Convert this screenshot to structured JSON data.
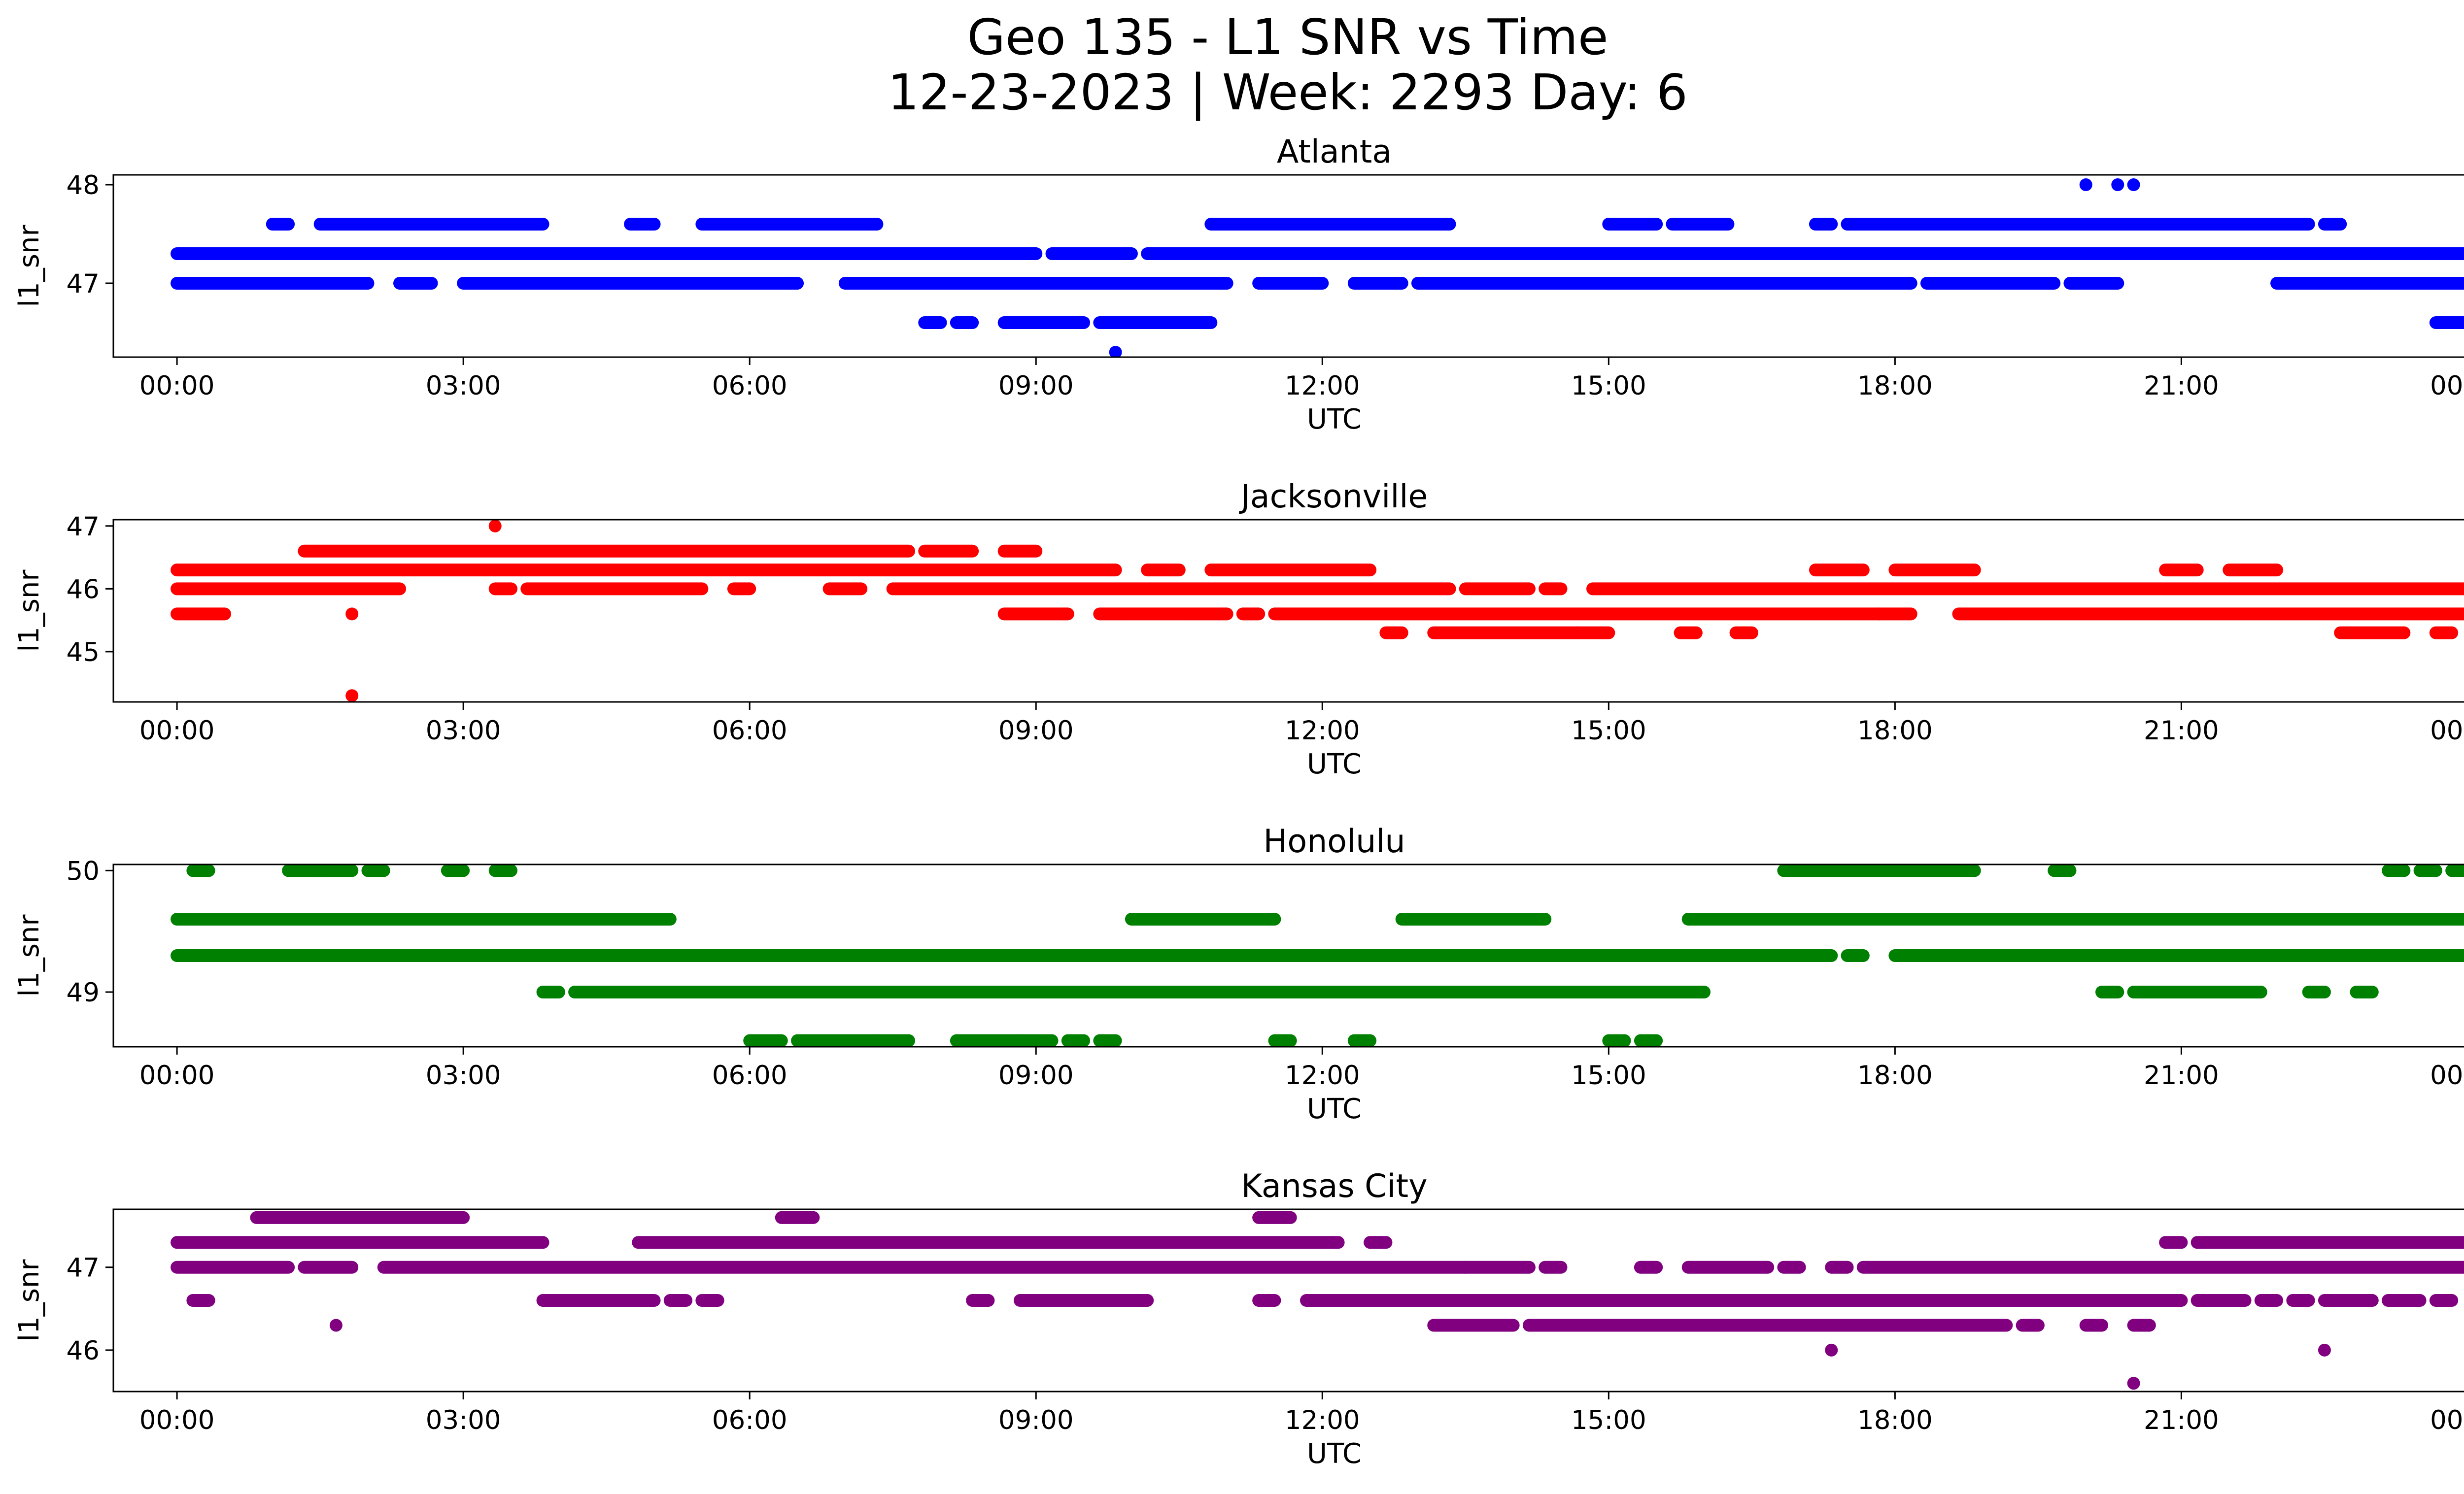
{
  "title_line1": "Geo 135 - L1 SNR vs Time",
  "title_line2": "12-23-2023 | Week: 2293 Day: 6",
  "chart_data": [
    {
      "type": "scatter",
      "title": "Atlanta",
      "xlabel": "UTC",
      "ylabel": "l1_snr",
      "color": "#0000ff",
      "xlim": [
        "-00:40",
        "24:55"
      ],
      "ylim": [
        46.25,
        48.1
      ],
      "xticks": [
        "00:00",
        "03:00",
        "06:00",
        "09:00",
        "12:00",
        "15:00",
        "18:00",
        "21:00",
        "00:00"
      ],
      "yticks": [
        47,
        48
      ],
      "bands": [
        {
          "y": 47.0,
          "ranges": [
            [
              "00:00",
              "02:00"
            ],
            [
              "02:20",
              "02:40"
            ],
            [
              "03:00",
              "03:40"
            ],
            [
              "03:40",
              "06:30"
            ],
            [
              "07:00",
              "11:00"
            ],
            [
              "11:20",
              "12:00"
            ],
            [
              "12:20",
              "12:50"
            ],
            [
              "13:00",
              "18:10"
            ],
            [
              "18:20",
              "19:40"
            ],
            [
              "19:50",
              "20:20"
            ],
            [
              "22:00",
              "24:00"
            ]
          ]
        },
        {
          "y": 47.3,
          "ranges": [
            [
              "00:00",
              "09:00"
            ],
            [
              "09:10",
              "10:00"
            ],
            [
              "10:10",
              "24:00"
            ]
          ]
        },
        {
          "y": 47.6,
          "ranges": [
            [
              "01:00",
              "01:10"
            ],
            [
              "01:30",
              "03:00"
            ],
            [
              "03:00",
              "03:50"
            ],
            [
              "04:45",
              "05:00"
            ],
            [
              "05:30",
              "06:20"
            ],
            [
              "06:10",
              "07:20"
            ],
            [
              "10:50",
              "13:20"
            ],
            [
              "15:00",
              "15:30"
            ],
            [
              "15:40",
              "16:15"
            ],
            [
              "17:10",
              "17:20"
            ],
            [
              "17:30",
              "19:50"
            ],
            [
              "19:50",
              "22:20"
            ],
            [
              "22:30",
              "22:40"
            ]
          ]
        },
        {
          "y": 46.6,
          "ranges": [
            [
              "07:50",
              "08:00"
            ],
            [
              "08:10",
              "08:20"
            ],
            [
              "08:40",
              "09:30"
            ],
            [
              "09:40",
              "10:50"
            ],
            [
              "23:40",
              "24:00"
            ]
          ]
        }
      ],
      "points": [
        [
          "20:00",
          48.0
        ],
        [
          "20:20",
          48.0
        ],
        [
          "20:30",
          48.0
        ],
        [
          "09:50",
          46.3
        ]
      ]
    },
    {
      "type": "scatter",
      "title": "Jacksonville",
      "xlabel": "UTC",
      "ylabel": "l1_snr",
      "color": "#ff0000",
      "xlim": [
        "-00:40",
        "24:55"
      ],
      "ylim": [
        44.2,
        47.1
      ],
      "xticks": [
        "00:00",
        "03:00",
        "06:00",
        "09:00",
        "12:00",
        "15:00",
        "18:00",
        "21:00",
        "00:00"
      ],
      "yticks": [
        45,
        46,
        47
      ],
      "bands": [
        {
          "y": 46.3,
          "ranges": [
            [
              "00:00",
              "09:50"
            ],
            [
              "10:10",
              "10:30"
            ],
            [
              "10:50",
              "12:30"
            ],
            [
              "17:10",
              "17:40"
            ],
            [
              "18:00",
              "18:50"
            ],
            [
              "20:50",
              "21:10"
            ],
            [
              "21:30",
              "22:00"
            ]
          ]
        },
        {
          "y": 46.6,
          "ranges": [
            [
              "01:20",
              "07:40"
            ],
            [
              "07:50",
              "08:20"
            ],
            [
              "08:40",
              "09:00"
            ]
          ]
        },
        {
          "y": 46.0,
          "ranges": [
            [
              "00:00",
              "02:20"
            ],
            [
              "03:20",
              "03:30"
            ],
            [
              "03:40",
              "05:30"
            ],
            [
              "05:50",
              "06:00"
            ],
            [
              "06:50",
              "07:10"
            ],
            [
              "07:30",
              "13:20"
            ],
            [
              "13:30",
              "14:10"
            ],
            [
              "14:20",
              "14:30"
            ],
            [
              "14:50",
              "24:00"
            ]
          ]
        },
        {
          "y": 45.6,
          "ranges": [
            [
              "00:00",
              "00:30"
            ],
            [
              "08:40",
              "09:20"
            ],
            [
              "09:40",
              "11:00"
            ],
            [
              "11:10",
              "11:20"
            ],
            [
              "11:30",
              "17:50"
            ],
            [
              "17:50",
              "18:10"
            ],
            [
              "18:40",
              "24:00"
            ]
          ]
        },
        {
          "y": 45.3,
          "ranges": [
            [
              "12:40",
              "12:50"
            ],
            [
              "13:10",
              "14:40"
            ],
            [
              "14:40",
              "15:00"
            ],
            [
              "15:45",
              "15:55"
            ],
            [
              "16:20",
              "16:30"
            ],
            [
              "22:40",
              "23:20"
            ],
            [
              "23:40",
              "23:50"
            ]
          ]
        }
      ],
      "points": [
        [
          "03:20",
          47.0
        ],
        [
          "01:50",
          45.6
        ],
        [
          "01:50",
          44.3
        ]
      ]
    },
    {
      "type": "scatter",
      "title": "Honolulu",
      "xlabel": "UTC",
      "ylabel": "l1_snr",
      "color": "#008000",
      "xlim": [
        "-00:40",
        "24:55"
      ],
      "ylim": [
        48.55,
        50.05
      ],
      "xticks": [
        "00:00",
        "03:00",
        "06:00",
        "09:00",
        "12:00",
        "15:00",
        "18:00",
        "21:00",
        "00:00"
      ],
      "yticks": [
        49,
        50
      ],
      "bands": [
        {
          "y": 49.3,
          "ranges": [
            [
              "00:00",
              "17:20"
            ],
            [
              "17:30",
              "17:40"
            ],
            [
              "18:00",
              "24:00"
            ]
          ]
        },
        {
          "y": 49.6,
          "ranges": [
            [
              "00:00",
              "05:10"
            ],
            [
              "10:00",
              "11:30"
            ],
            [
              "12:50",
              "13:30"
            ],
            [
              "13:30",
              "14:20"
            ],
            [
              "15:50",
              "24:00"
            ]
          ]
        },
        {
          "y": 49.0,
          "ranges": [
            [
              "03:50",
              "04:00"
            ],
            [
              "04:10",
              "16:00"
            ],
            [
              "20:10",
              "20:20"
            ],
            [
              "20:30",
              "21:50"
            ],
            [
              "22:20",
              "22:30"
            ],
            [
              "22:50",
              "23:00"
            ]
          ]
        },
        {
          "y": 50.0,
          "ranges": [
            [
              "00:10",
              "00:20"
            ],
            [
              "01:10",
              "01:30"
            ],
            [
              "01:30",
              "01:50"
            ],
            [
              "02:00",
              "02:10"
            ],
            [
              "02:50",
              "03:00"
            ],
            [
              "03:20",
              "03:30"
            ],
            [
              "16:50",
              "18:50"
            ],
            [
              "19:40",
              "19:50"
            ],
            [
              "23:10",
              "23:20"
            ],
            [
              "23:30",
              "23:40"
            ],
            [
              "23:50",
              "24:00"
            ]
          ]
        },
        {
          "y": 48.6,
          "ranges": [
            [
              "06:00",
              "06:20"
            ],
            [
              "06:30",
              "07:20"
            ],
            [
              "07:20",
              "07:40"
            ],
            [
              "08:10",
              "08:50"
            ],
            [
              "08:50",
              "09:10"
            ],
            [
              "09:20",
              "09:30"
            ],
            [
              "09:40",
              "09:50"
            ],
            [
              "11:30",
              "11:40"
            ],
            [
              "12:20",
              "12:30"
            ],
            [
              "15:00",
              "15:10"
            ],
            [
              "15:20",
              "15:30"
            ]
          ]
        }
      ],
      "points": []
    },
    {
      "type": "scatter",
      "title": "Kansas City",
      "xlabel": "UTC",
      "ylabel": "l1_snr",
      "color": "#800080",
      "xlim": [
        "-00:40",
        "24:55"
      ],
      "ylim": [
        45.5,
        47.7
      ],
      "xticks": [
        "00:00",
        "03:00",
        "06:00",
        "09:00",
        "12:00",
        "15:00",
        "18:00",
        "21:00",
        "00:00"
      ],
      "yticks": [
        46,
        47
      ],
      "bands": [
        {
          "y": 47.3,
          "ranges": [
            [
              "00:00",
              "03:50"
            ],
            [
              "04:50",
              "12:10"
            ],
            [
              "12:30",
              "12:40"
            ],
            [
              "20:50",
              "21:00"
            ],
            [
              "21:10",
              "24:00"
            ]
          ]
        },
        {
          "y": 47.6,
          "ranges": [
            [
              "00:50",
              "03:00"
            ],
            [
              "06:20",
              "06:40"
            ],
            [
              "11:20",
              "11:40"
            ]
          ]
        },
        {
          "y": 47.0,
          "ranges": [
            [
              "00:00",
              "01:10"
            ],
            [
              "01:20",
              "01:50"
            ],
            [
              "02:10",
              "13:30"
            ],
            [
              "13:30",
              "14:10"
            ],
            [
              "14:20",
              "14:30"
            ],
            [
              "15:20",
              "15:30"
            ],
            [
              "15:50",
              "16:40"
            ],
            [
              "16:50",
              "17:00"
            ],
            [
              "17:20",
              "17:30"
            ],
            [
              "17:40",
              "24:00"
            ]
          ]
        },
        {
          "y": 46.6,
          "ranges": [
            [
              "00:10",
              "00:20"
            ],
            [
              "03:50",
              "05:00"
            ],
            [
              "05:10",
              "05:20"
            ],
            [
              "05:30",
              "05:40"
            ],
            [
              "08:20",
              "08:30"
            ],
            [
              "08:50",
              "09:30"
            ],
            [
              "09:30",
              "10:10"
            ],
            [
              "11:20",
              "11:30"
            ],
            [
              "11:50",
              "12:00"
            ],
            [
              "12:00",
              "21:00"
            ],
            [
              "21:10",
              "21:40"
            ],
            [
              "21:50",
              "22:00"
            ],
            [
              "22:10",
              "22:20"
            ],
            [
              "22:30",
              "23:00"
            ],
            [
              "23:10",
              "23:30"
            ],
            [
              "23:40",
              "23:50"
            ]
          ]
        },
        {
          "y": 46.3,
          "ranges": [
            [
              "13:10",
              "13:40"
            ],
            [
              "13:40",
              "14:00"
            ],
            [
              "14:10",
              "19:10"
            ],
            [
              "19:20",
              "19:30"
            ],
            [
              "20:00",
              "20:10"
            ],
            [
              "20:30",
              "20:40"
            ]
          ]
        }
      ],
      "points": [
        [
          "01:40",
          46.3
        ],
        [
          "17:20",
          46.0
        ],
        [
          "22:30",
          46.0
        ],
        [
          "20:30",
          45.6
        ]
      ]
    }
  ]
}
